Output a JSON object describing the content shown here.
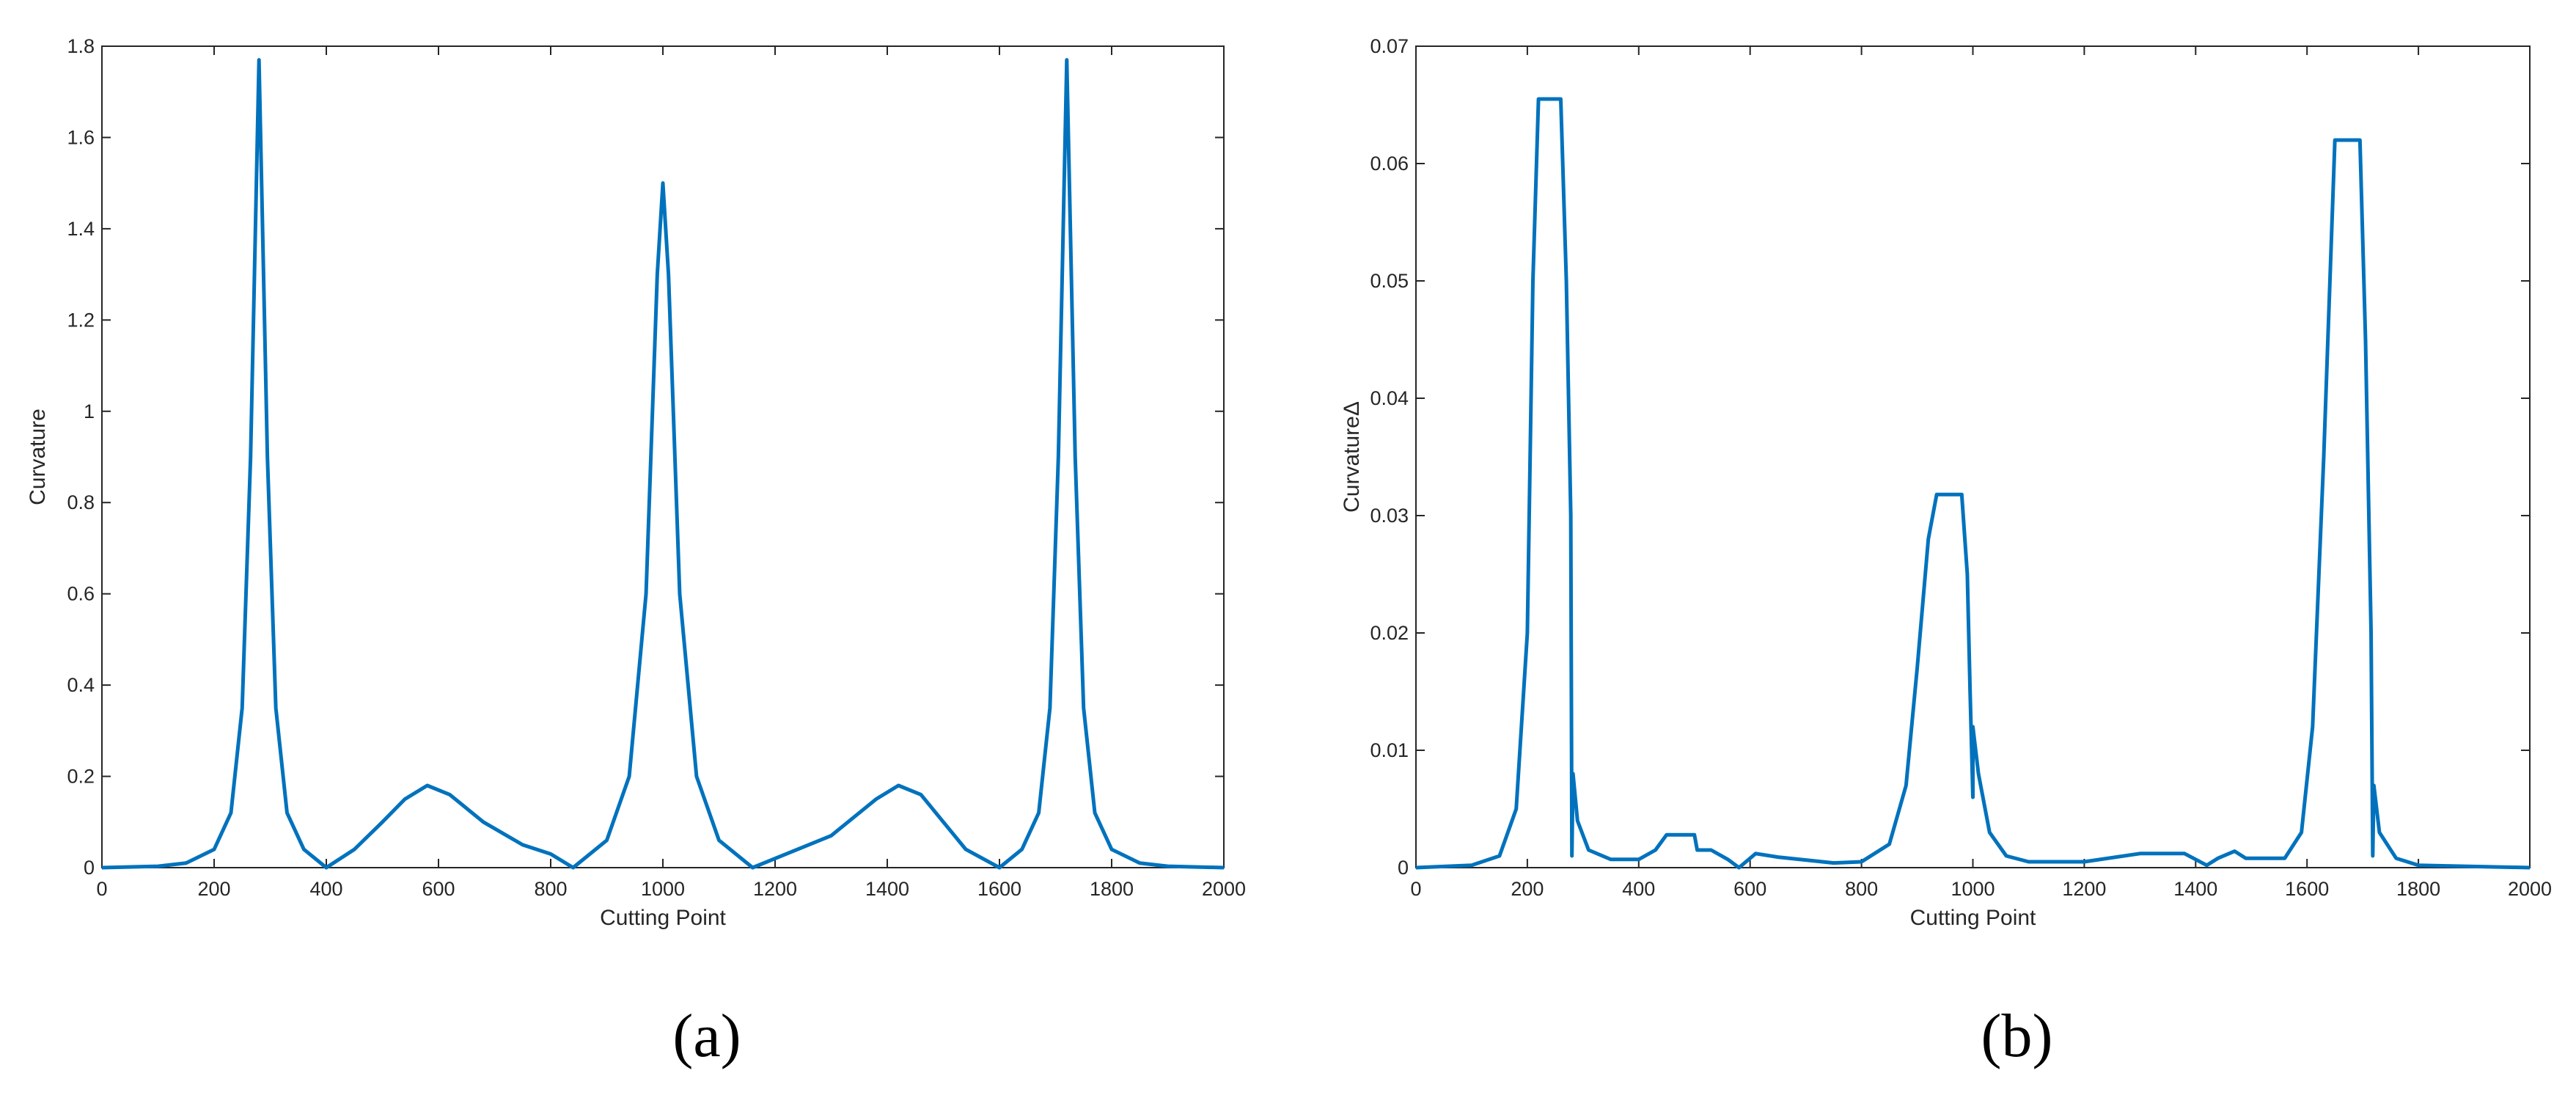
{
  "chart_data": [
    {
      "type": "line",
      "caption": "(a)",
      "xlabel": "Cutting Point",
      "ylabel": "Curvature",
      "xlim": [
        0,
        2000
      ],
      "xticks": [
        0,
        200,
        400,
        600,
        800,
        1000,
        1200,
        1400,
        1600,
        1800,
        2000
      ],
      "ylim": [
        0,
        1.8
      ],
      "yticks": [
        0,
        0.2,
        0.4,
        0.6,
        0.8,
        1,
        1.2,
        1.4,
        1.6,
        1.8
      ],
      "grid": false,
      "series": [
        {
          "color": "#0072bd",
          "x": [
            0,
            100,
            150,
            200,
            230,
            250,
            265,
            280,
            295,
            310,
            330,
            360,
            400,
            450,
            500,
            540,
            580,
            620,
            680,
            750,
            800,
            840,
            900,
            940,
            970,
            990,
            1000,
            1010,
            1030,
            1060,
            1100,
            1160,
            1220,
            1300,
            1380,
            1420,
            1460,
            1500,
            1540,
            1600,
            1640,
            1670,
            1690,
            1705,
            1720,
            1735,
            1750,
            1770,
            1800,
            1850,
            1900,
            2000
          ],
          "values": [
            0,
            0.003,
            0.01,
            0.04,
            0.12,
            0.35,
            0.9,
            1.77,
            0.9,
            0.35,
            0.12,
            0.04,
            0,
            0.04,
            0.1,
            0.15,
            0.18,
            0.16,
            0.1,
            0.05,
            0.03,
            0,
            0.06,
            0.2,
            0.6,
            1.3,
            1.5,
            1.3,
            0.6,
            0.2,
            0.06,
            0,
            0.03,
            0.07,
            0.15,
            0.18,
            0.16,
            0.1,
            0.04,
            0,
            0.04,
            0.12,
            0.35,
            0.9,
            1.77,
            0.9,
            0.35,
            0.12,
            0.04,
            0.01,
            0.003,
            0
          ]
        }
      ]
    },
    {
      "type": "line",
      "caption": "(b)",
      "xlabel": "Cutting Point",
      "ylabel": "CurvatureΔ",
      "xlim": [
        0,
        2000
      ],
      "xticks": [
        0,
        200,
        400,
        600,
        800,
        1000,
        1200,
        1400,
        1600,
        1800,
        2000
      ],
      "ylim": [
        0,
        0.07
      ],
      "yticks": [
        0,
        0.01,
        0.02,
        0.03,
        0.04,
        0.05,
        0.06,
        0.07
      ],
      "grid": false,
      "series": [
        {
          "color": "#0072bd",
          "x": [
            0,
            100,
            150,
            180,
            200,
            210,
            220,
            260,
            270,
            278,
            280,
            282,
            290,
            310,
            350,
            400,
            430,
            450,
            500,
            505,
            530,
            560,
            580,
            610,
            650,
            750,
            800,
            850,
            880,
            900,
            920,
            935,
            980,
            990,
            995,
            1000,
            1000,
            1010,
            1030,
            1060,
            1100,
            1200,
            1300,
            1380,
            1420,
            1440,
            1470,
            1490,
            1560,
            1590,
            1610,
            1630,
            1650,
            1695,
            1705,
            1715,
            1718,
            1720,
            1730,
            1760,
            1800,
            2000
          ],
          "values": [
            0,
            0.0002,
            0.001,
            0.005,
            0.02,
            0.05,
            0.0655,
            0.0655,
            0.05,
            0.03,
            0.001,
            0.008,
            0.004,
            0.0015,
            0.0007,
            0.0007,
            0.0015,
            0.0028,
            0.0028,
            0.0015,
            0.0015,
            0.0007,
            0,
            0.0012,
            0.0009,
            0.0004,
            0.0005,
            0.002,
            0.007,
            0.017,
            0.028,
            0.0318,
            0.0318,
            0.025,
            0.015,
            0.006,
            0.012,
            0.008,
            0.003,
            0.001,
            0.0005,
            0.0005,
            0.0012,
            0.0012,
            0.0002,
            0.0008,
            0.0014,
            0.0008,
            0.0008,
            0.003,
            0.012,
            0.035,
            0.062,
            0.062,
            0.045,
            0.02,
            0.001,
            0.007,
            0.003,
            0.0008,
            0.0002,
            0
          ]
        }
      ]
    }
  ]
}
